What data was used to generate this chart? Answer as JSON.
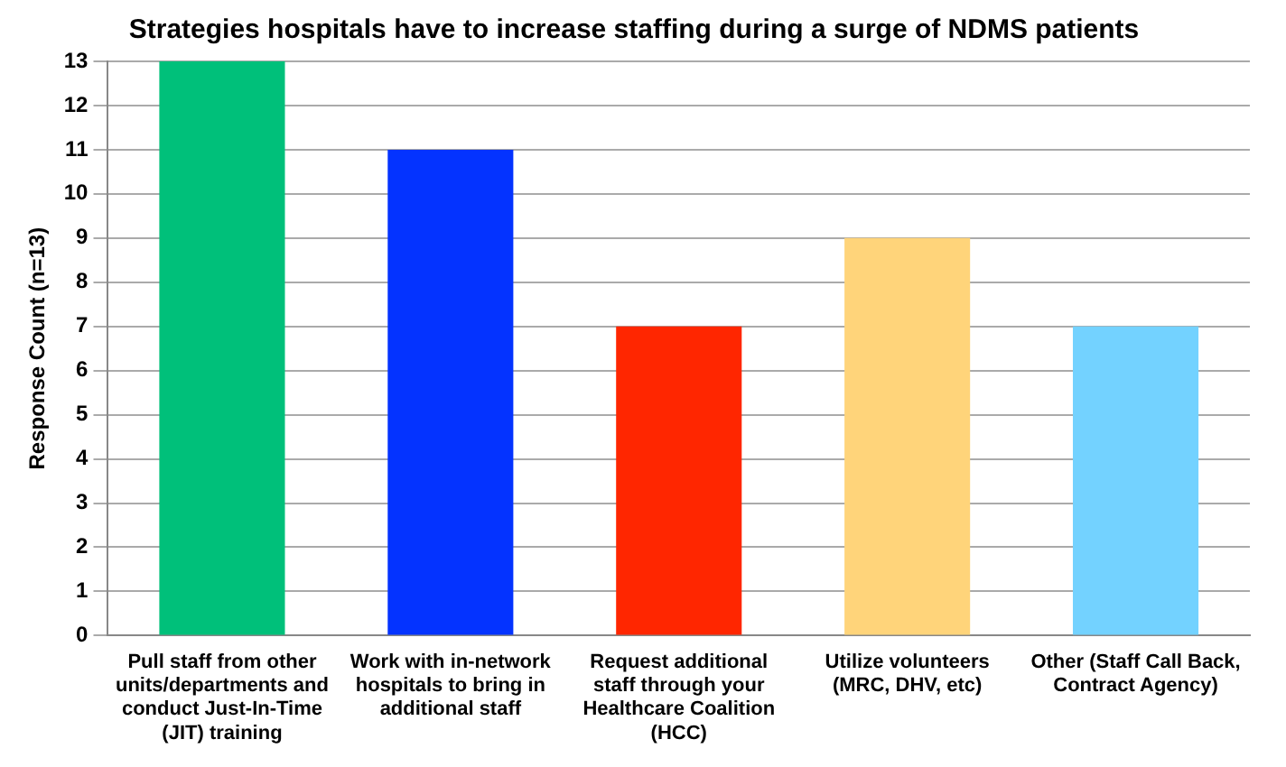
{
  "chart_data": {
    "type": "bar",
    "title": "Strategies hospitals have to increase staffing during a surge of NDMS patients",
    "ylabel": "Response Count (n=13)",
    "categories": [
      "Pull staff from other units/departments and conduct Just-In-Time (JIT) training",
      "Work with in-network hospitals to bring in additional staff",
      "Request additional staff through your Healthcare Coalition (HCC)",
      "Utilize volunteers (MRC, DHV, etc)",
      "Other (Staff Call Back, Contract Agency)"
    ],
    "values": [
      13,
      11,
      7,
      9,
      7
    ],
    "colors": [
      "#00c07a",
      "#0433ff",
      "#ff2600",
      "#ffd47a",
      "#73d2ff"
    ],
    "ylim": [
      0,
      13
    ],
    "yticks": [
      0,
      1,
      2,
      3,
      4,
      5,
      6,
      7,
      8,
      9,
      10,
      11,
      12,
      13
    ],
    "grid": "y",
    "legend": false
  }
}
